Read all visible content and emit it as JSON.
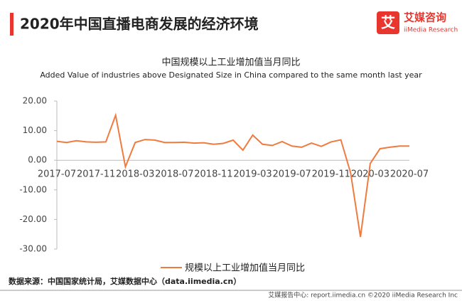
{
  "header": {
    "title": "2020年中国直播电商发展的经济环境",
    "logo_cn": "艾媒咨询",
    "logo_en": "iiMedia Research"
  },
  "footer": {
    "source": "数据来源：中国国家统计局，艾媒数据中心（data.iimedia.cn）",
    "credit": "艾媒报告中心: report.iimedia.cn ©2020  iiMedia Research  Inc"
  },
  "chart_data": {
    "type": "line",
    "title": "中国规模以上工业增加值当月同比",
    "subtitle": "Added Value of industries above Designated Size in China compared to the same month  last year",
    "categories": [
      "2017-07",
      null,
      null,
      null,
      "2017-11",
      null,
      null,
      null,
      "2018-03",
      null,
      null,
      null,
      "2018-07",
      null,
      null,
      null,
      "2018-11",
      null,
      null,
      null,
      "2019-03",
      null,
      null,
      null,
      "2019-07",
      null,
      null,
      null,
      "2019-11",
      null,
      null,
      null,
      "2020-03",
      null,
      null,
      null,
      "2020-07"
    ],
    "series": [
      {
        "name": "规模以上工业增加值当月同比",
        "color": "#f07b3f",
        "values": [
          6.4,
          6.0,
          6.6,
          6.2,
          6.1,
          6.2,
          15.2,
          -2.2,
          6.0,
          7.0,
          6.8,
          6.0,
          6.0,
          6.1,
          5.8,
          5.9,
          5.4,
          5.7,
          6.8,
          3.4,
          8.5,
          5.4,
          5.0,
          6.3,
          4.8,
          4.4,
          5.8,
          4.7,
          6.2,
          6.9,
          -4.3,
          -25.9,
          -1.1,
          3.9,
          4.4,
          4.8,
          4.8
        ]
      }
    ],
    "ylim": [
      -30,
      20
    ],
    "yticks": [
      {
        "value": 20,
        "label": "20.00"
      },
      {
        "value": 10,
        "label": "10.00"
      },
      {
        "value": 0,
        "label": "0.00"
      },
      {
        "value": -10,
        "label": "-10.00"
      },
      {
        "value": -20,
        "label": "-20.00"
      },
      {
        "value": -30,
        "label": "-30.00"
      }
    ],
    "grid": false,
    "legend": "bottom"
  }
}
